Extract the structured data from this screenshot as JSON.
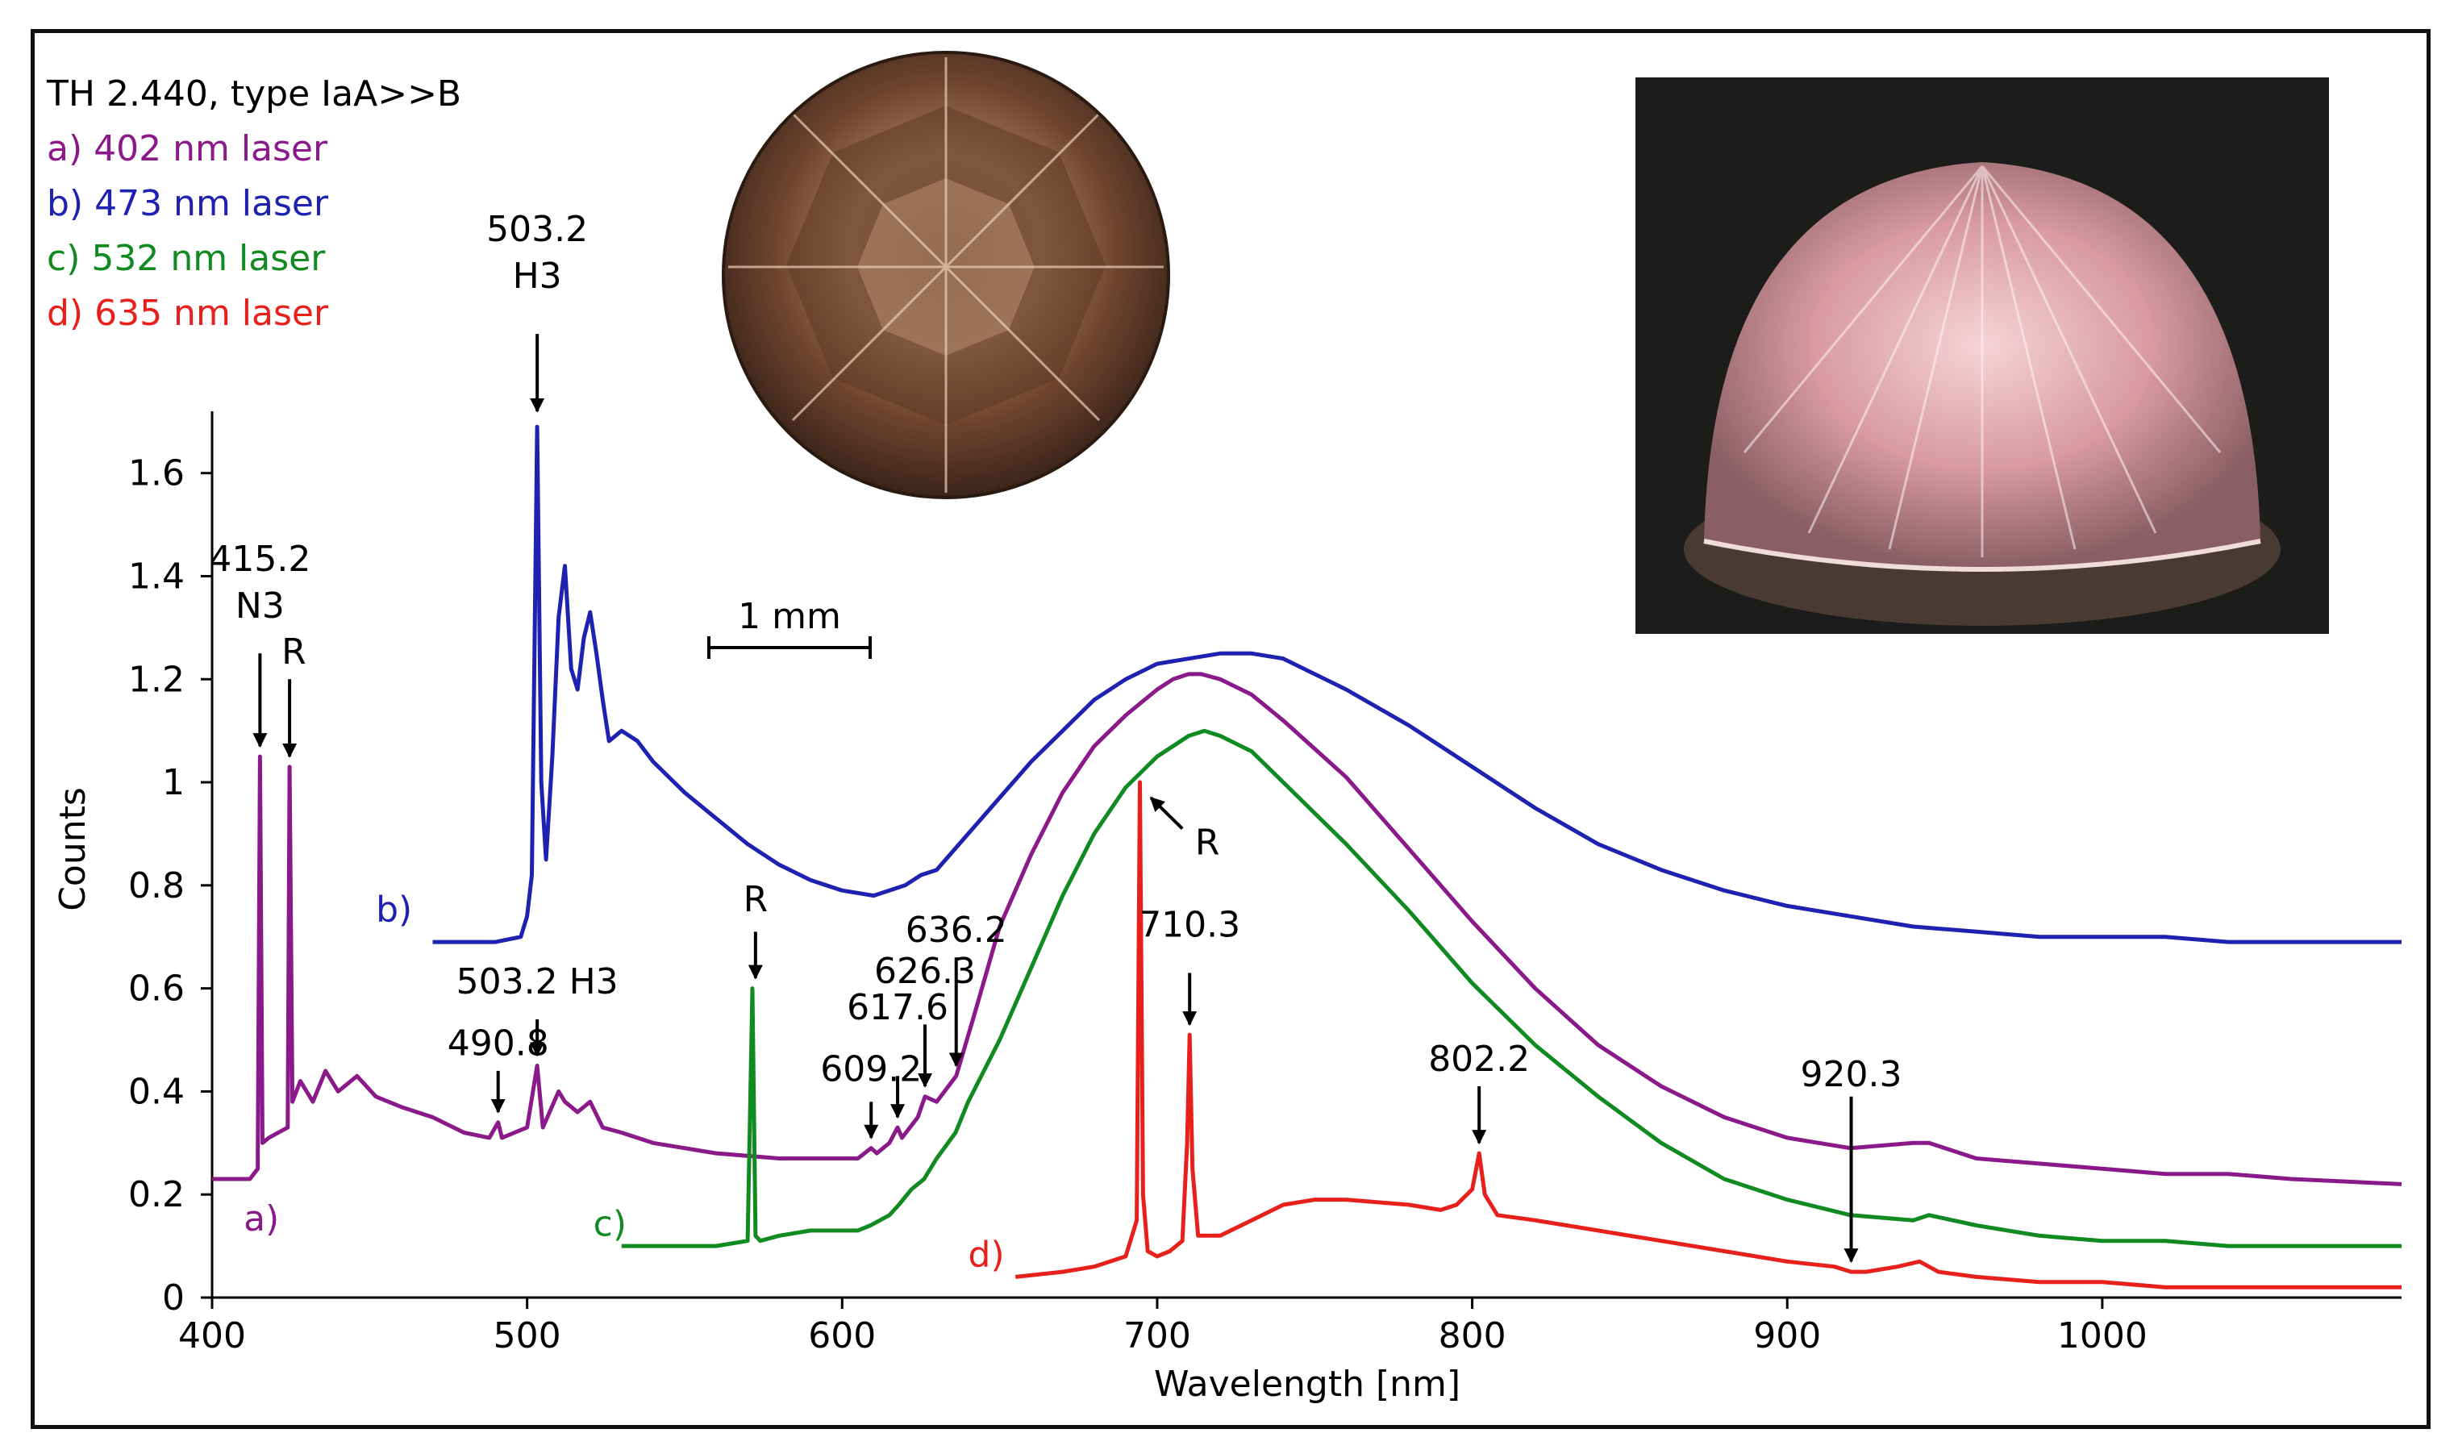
{
  "figure_sample": "TH 2.440, type IaA>>B",
  "legend": [
    {
      "text": "a) 402 nm laser",
      "color": "#8a1a8a"
    },
    {
      "text": "b) 473 nm laser",
      "color": "#1f22b0"
    },
    {
      "text": "c) 532 nm laser",
      "color": "#128a22"
    },
    {
      "text": "d) 635 nm laser",
      "color": "#e8201c"
    }
  ],
  "scale_bar_label": "1 mm",
  "photo_left_desc": "brown round brilliant diamond, face-up",
  "photo_right_desc": "pink-glowing diamond under microscope",
  "chart_data": {
    "type": "line",
    "xlabel": "Wavelength [nm]",
    "ylabel": "Counts",
    "xlim": [
      400,
      1095
    ],
    "ylim": [
      0,
      1.72
    ],
    "xticks": [
      400,
      500,
      600,
      700,
      800,
      900,
      1000
    ],
    "xtick_labels": [
      "400",
      "500",
      "600",
      "700",
      "800",
      "900",
      "1000"
    ],
    "yticks": [
      0,
      0.2,
      0.4,
      0.6,
      0.8,
      1,
      1.2,
      1.4,
      1.6
    ],
    "ytick_labels": [
      "0",
      "0.2",
      "0.4",
      "0.6",
      "0.8",
      "1",
      "1.2",
      "1.4",
      "1.6"
    ],
    "series": [
      {
        "name": "a)",
        "color": "#8a1a8a",
        "x": [
          400,
          412,
          414.5,
          415.2,
          416,
          418,
          424,
          424.6,
          425.5,
          428,
          432,
          436,
          440,
          446,
          452,
          460,
          470,
          480,
          488,
          490.8,
          492,
          500,
          503.2,
          505,
          510,
          512,
          516,
          520,
          524,
          530,
          540,
          560,
          580,
          600,
          605,
          609.2,
          611,
          615,
          617.6,
          619,
          624,
          626.3,
          630,
          636.2,
          642,
          650,
          660,
          670,
          680,
          690,
          700,
          705,
          710,
          714,
          720,
          730,
          740,
          760,
          780,
          800,
          820,
          840,
          860,
          880,
          900,
          920,
          940,
          945,
          960,
          980,
          1000,
          1020,
          1040,
          1060,
          1095
        ],
        "y": [
          0.23,
          0.23,
          0.25,
          1.05,
          0.3,
          0.31,
          0.33,
          1.03,
          0.38,
          0.42,
          0.38,
          0.44,
          0.4,
          0.43,
          0.39,
          0.37,
          0.35,
          0.32,
          0.31,
          0.34,
          0.31,
          0.33,
          0.45,
          0.33,
          0.4,
          0.38,
          0.36,
          0.38,
          0.33,
          0.32,
          0.3,
          0.28,
          0.27,
          0.27,
          0.27,
          0.29,
          0.28,
          0.3,
          0.33,
          0.31,
          0.35,
          0.39,
          0.38,
          0.43,
          0.55,
          0.72,
          0.86,
          0.98,
          1.07,
          1.13,
          1.18,
          1.2,
          1.21,
          1.21,
          1.2,
          1.17,
          1.12,
          1.01,
          0.87,
          0.73,
          0.6,
          0.49,
          0.41,
          0.35,
          0.31,
          0.29,
          0.3,
          0.3,
          0.27,
          0.26,
          0.25,
          0.24,
          0.24,
          0.23,
          0.22
        ]
      },
      {
        "name": "b)",
        "color": "#1f22b0",
        "x": [
          470,
          490,
          498,
          500,
          501.5,
          503.2,
          504.5,
          506,
          508,
          510,
          512,
          514,
          516,
          518,
          520,
          522,
          524,
          526,
          530,
          535,
          540,
          550,
          560,
          570,
          580,
          590,
          600,
          610,
          620,
          625,
          630,
          640,
          650,
          660,
          670,
          680,
          690,
          700,
          710,
          720,
          730,
          740,
          760,
          780,
          800,
          820,
          840,
          860,
          880,
          900,
          920,
          940,
          960,
          980,
          1000,
          1020,
          1040,
          1060,
          1095
        ],
        "y": [
          0.69,
          0.69,
          0.7,
          0.74,
          0.82,
          1.69,
          1.0,
          0.85,
          1.05,
          1.32,
          1.42,
          1.22,
          1.18,
          1.28,
          1.33,
          1.25,
          1.16,
          1.08,
          1.1,
          1.08,
          1.04,
          0.98,
          0.93,
          0.88,
          0.84,
          0.81,
          0.79,
          0.78,
          0.8,
          0.82,
          0.83,
          0.9,
          0.97,
          1.04,
          1.1,
          1.16,
          1.2,
          1.23,
          1.24,
          1.25,
          1.25,
          1.24,
          1.18,
          1.11,
          1.03,
          0.95,
          0.88,
          0.83,
          0.79,
          0.76,
          0.74,
          0.72,
          0.71,
          0.7,
          0.7,
          0.7,
          0.69,
          0.69,
          0.69
        ]
      },
      {
        "name": "c)",
        "color": "#128a22",
        "x": [
          530,
          560,
          570,
          571.5,
          572.5,
          574,
          580,
          590,
          600,
          605,
          609,
          612,
          615,
          618,
          622,
          626,
          630,
          636,
          640,
          650,
          660,
          670,
          680,
          690,
          700,
          710,
          715,
          720,
          730,
          740,
          760,
          780,
          800,
          820,
          840,
          860,
          880,
          900,
          920,
          940,
          945,
          960,
          980,
          1000,
          1020,
          1040,
          1060,
          1095
        ],
        "y": [
          0.1,
          0.1,
          0.11,
          0.6,
          0.12,
          0.11,
          0.12,
          0.13,
          0.13,
          0.13,
          0.14,
          0.15,
          0.16,
          0.18,
          0.21,
          0.23,
          0.27,
          0.32,
          0.38,
          0.5,
          0.64,
          0.78,
          0.9,
          0.99,
          1.05,
          1.09,
          1.1,
          1.09,
          1.06,
          1.0,
          0.88,
          0.75,
          0.61,
          0.49,
          0.39,
          0.3,
          0.23,
          0.19,
          0.16,
          0.15,
          0.16,
          0.14,
          0.12,
          0.11,
          0.11,
          0.1,
          0.1,
          0.1
        ]
      },
      {
        "name": "d)",
        "color": "#e8201c",
        "x": [
          655,
          670,
          680,
          690,
          693.5,
          694.5,
          695.5,
          697,
          700,
          704,
          708,
          709.5,
          710.3,
          711.2,
          713,
          720,
          730,
          740,
          750,
          760,
          780,
          790,
          795,
          800,
          802.2,
          804,
          808,
          820,
          840,
          860,
          880,
          900,
          915,
          920.3,
          925,
          935,
          942,
          948,
          960,
          980,
          1000,
          1020,
          1040,
          1060,
          1095
        ],
        "y": [
          0.04,
          0.05,
          0.06,
          0.08,
          0.15,
          1.0,
          0.2,
          0.09,
          0.08,
          0.09,
          0.11,
          0.3,
          0.51,
          0.25,
          0.12,
          0.12,
          0.15,
          0.18,
          0.19,
          0.19,
          0.18,
          0.17,
          0.18,
          0.21,
          0.28,
          0.2,
          0.16,
          0.15,
          0.13,
          0.11,
          0.09,
          0.07,
          0.06,
          0.05,
          0.05,
          0.06,
          0.07,
          0.05,
          0.04,
          0.03,
          0.03,
          0.02,
          0.02,
          0.02,
          0.02
        ]
      }
    ],
    "series_labels": [
      {
        "text": "a)",
        "x": 410,
        "y": 0.13
      },
      {
        "text": "b)",
        "x": 452,
        "y": 0.73
      },
      {
        "text": "c)",
        "x": 521,
        "y": 0.12
      },
      {
        "text": "d)",
        "x": 640,
        "y": 0.06
      }
    ],
    "annotations": [
      {
        "lines": [
          "415.2",
          "N3"
        ],
        "x": 415.2,
        "tip_y": 1.07,
        "tail_y": 1.25,
        "text_y": 1.41,
        "arrow_color": "#000"
      },
      {
        "lines": [
          "R"
        ],
        "x": 424.6,
        "tip_y": 1.05,
        "tail_y": 1.2,
        "text_y": 1.23,
        "arrow_color": "#000"
      },
      {
        "lines": [
          "503.2",
          "H3"
        ],
        "x": 503.2,
        "tip_y": 1.72,
        "tail_y": 1.87,
        "text_y": 2.05,
        "arrow_color": "#000"
      },
      {
        "lines": [
          "490.8"
        ],
        "x": 490.8,
        "tip_y": 0.36,
        "tail_y": 0.44,
        "text_y": 0.47,
        "arrow_color": "#000"
      },
      {
        "lines": [
          "503.2 H3"
        ],
        "x": 503.2,
        "tip_y": 0.47,
        "tail_y": 0.54,
        "text_y": 0.59,
        "arrow_color": "#000"
      },
      {
        "lines": [
          "R"
        ],
        "x": 572.5,
        "tip_y": 0.62,
        "tail_y": 0.71,
        "text_y": 0.75,
        "arrow_color": "#000"
      },
      {
        "lines": [
          "609.2"
        ],
        "x": 609.2,
        "tip_y": 0.31,
        "tail_y": 0.38,
        "text_y": 0.42,
        "arrow_color": "#000"
      },
      {
        "lines": [
          "617.6"
        ],
        "x": 617.6,
        "tip_y": 0.35,
        "tail_y": 0.43,
        "text_y": 0.54,
        "arrow_color": "#000"
      },
      {
        "lines": [
          "626.3"
        ],
        "x": 626.3,
        "tip_y": 0.41,
        "tail_y": 0.53,
        "text_y": 0.61,
        "arrow_color": "#000"
      },
      {
        "lines": [
          "636.2"
        ],
        "x": 636.2,
        "tip_y": 0.45,
        "tail_y": 0.66,
        "text_y": 0.69,
        "arrow_color": "#000"
      },
      {
        "lines": [
          "710.3"
        ],
        "x": 710.3,
        "tip_y": 0.53,
        "tail_y": 0.63,
        "text_y": 0.7,
        "arrow_color": "#000"
      },
      {
        "lines": [
          "802.2"
        ],
        "x": 802.2,
        "tip_y": 0.3,
        "tail_y": 0.41,
        "text_y": 0.44,
        "arrow_color": "#000"
      },
      {
        "lines": [
          "920.3"
        ],
        "x": 920.3,
        "tip_y": 0.07,
        "tail_y": 0.39,
        "text_y": 0.41,
        "arrow_color": "#000"
      }
    ],
    "diag_annotation": {
      "text": "R",
      "x_tip": 698,
      "y_tip": 0.97,
      "x_tail": 708,
      "y_tail": 0.91,
      "text_x": 712,
      "text_y": 0.86
    }
  }
}
